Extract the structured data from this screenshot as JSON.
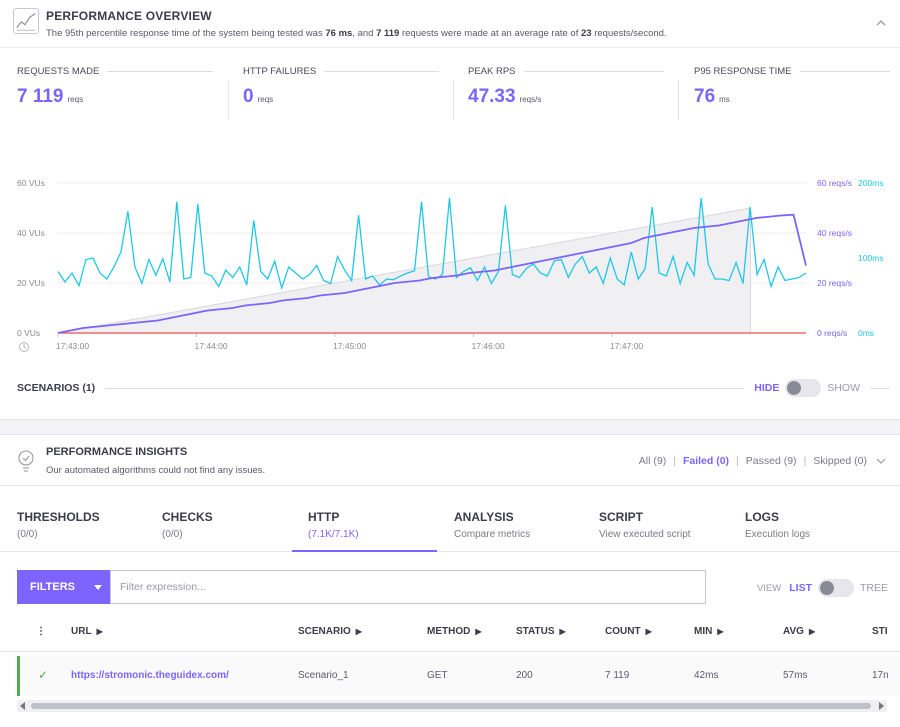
{
  "overview": {
    "title": "PERFORMANCE OVERVIEW",
    "summary": {
      "prefix": "The 95th percentile response time of the system being tested was ",
      "p95": "76 ms",
      "mid1": ", and ",
      "requests": "7 119",
      "mid2": " requests were made at an average rate of ",
      "rate": "23",
      "suffix": " requests/second."
    },
    "icon": "chart-trend-icon",
    "collapse_icon": "chevron-up-icon"
  },
  "metrics": [
    {
      "label": "REQUESTS MADE",
      "value": "7 119",
      "unit": "reqs"
    },
    {
      "label": "HTTP FAILURES",
      "value": "0",
      "unit": "reqs"
    },
    {
      "label": "PEAK RPS",
      "value": "47.33",
      "unit": "reqs/s"
    },
    {
      "label": "P95 RESPONSE TIME",
      "value": "76",
      "unit": "ms"
    }
  ],
  "chart_data": {
    "type": "line",
    "x_ticks": [
      "17:43:00",
      "17:44:00",
      "17:45:00",
      "17:46:00",
      "17:47:00"
    ],
    "y_left_ticks": [
      "0 VUs",
      "20 VUs",
      "40 VUs",
      "60 VUs"
    ],
    "y_left_range": [
      0,
      60
    ],
    "y_rps_ticks": [
      "0 reqs/s",
      "20 reqs/s",
      "40 reqs/s",
      "60 reqs/s"
    ],
    "y_rps_range": [
      0,
      60
    ],
    "y_ms_ticks": [
      "0ms",
      "100ms",
      "200ms"
    ],
    "y_ms_range": [
      0,
      200
    ],
    "grid": true,
    "colors": {
      "vus": "#cfcfd6",
      "rps": "#7d64ff",
      "response_time": "#1fc8e6",
      "failures": "#e5534b"
    },
    "series": [
      {
        "key": "vus",
        "values": [
          0,
          1,
          2,
          3,
          4,
          5,
          6,
          7,
          8,
          9,
          10,
          11,
          12,
          13,
          14,
          15,
          16,
          17,
          18,
          19,
          20,
          21,
          22,
          23,
          24,
          25,
          26,
          27,
          28,
          29,
          30,
          31,
          32,
          33,
          34,
          35,
          36,
          37,
          38,
          39,
          40,
          41,
          42,
          43,
          44,
          45,
          46,
          47,
          48,
          49,
          50
        ],
        "x_minutes": [
          0,
          0.1,
          0.2,
          0.3,
          0.4,
          0.5,
          0.6,
          0.7,
          0.8,
          0.9,
          1.0,
          1.1,
          1.2,
          1.3,
          1.4,
          1.5,
          1.6,
          1.7,
          1.8,
          1.9,
          2.0,
          2.1,
          2.2,
          2.3,
          2.4,
          2.5,
          2.6,
          2.7,
          2.8,
          2.9,
          3.0,
          3.1,
          3.2,
          3.3,
          3.4,
          3.5,
          3.6,
          3.7,
          3.8,
          3.9,
          4.0,
          4.1,
          4.2,
          4.3,
          4.4,
          4.5,
          4.6,
          4.7,
          4.8,
          4.9,
          5.0
        ]
      },
      {
        "key": "rps",
        "values": [
          0,
          1,
          2,
          2.5,
          3,
          3.5,
          4,
          4.5,
          5,
          6,
          7,
          8,
          9,
          9.5,
          10,
          11,
          11.5,
          12,
          13,
          13.5,
          14,
          15,
          15.5,
          16,
          17,
          18,
          19,
          20,
          20.5,
          21,
          22,
          22.5,
          23,
          24,
          24.5,
          25,
          26,
          27,
          28,
          29,
          30,
          31,
          32,
          33,
          34,
          35,
          36,
          38,
          39,
          40,
          41,
          42,
          42.5,
          43,
          44,
          45,
          46,
          46.5,
          47,
          47.3,
          27
        ],
        "x_minutes": [
          0,
          0.1,
          0.2,
          0.3,
          0.4,
          0.5,
          0.6,
          0.7,
          0.8,
          0.9,
          1.0,
          1.1,
          1.2,
          1.3,
          1.4,
          1.5,
          1.6,
          1.7,
          1.8,
          1.9,
          2.0,
          2.1,
          2.2,
          2.3,
          2.4,
          2.5,
          2.6,
          2.7,
          2.8,
          2.9,
          3.0,
          3.1,
          3.2,
          3.3,
          3.4,
          3.5,
          3.6,
          3.7,
          3.8,
          3.9,
          4.0,
          4.1,
          4.2,
          4.3,
          4.4,
          4.5,
          4.6,
          4.7,
          4.8,
          4.9,
          5.0,
          5.1,
          5.2,
          5.3,
          5.4,
          5.5,
          5.6,
          5.7,
          5.8,
          5.9,
          6.0
        ]
      },
      {
        "key": "response_time",
        "values": [
          82,
          68,
          80,
          63,
          98,
          100,
          80,
          72,
          88,
          108,
          162,
          88,
          66,
          98,
          77,
          99,
          68,
          175,
          72,
          74,
          172,
          80,
          76,
          62,
          84,
          74,
          88,
          64,
          150,
          82,
          72,
          96,
          60,
          88,
          80,
          72,
          78,
          90,
          70,
          66,
          102,
          84,
          70,
          157,
          72,
          76,
          64,
          72,
          71,
          76,
          80,
          83,
          175,
          75,
          72,
          78,
          180,
          74,
          82,
          87,
          70,
          88,
          66,
          82,
          170,
          78,
          74,
          86,
          92,
          80,
          76,
          96,
          98,
          74,
          92,
          102,
          80,
          88,
          66,
          100,
          72,
          64,
          108,
          72,
          86,
          168,
          80,
          76,
          102,
          66,
          94,
          77,
          180,
          92,
          72,
          72,
          70,
          94,
          66,
          168,
          78,
          98,
          62,
          88,
          70,
          72,
          74,
          80
        ],
        "x_minutes": [
          0.0,
          0.05,
          0.1,
          0.15,
          0.2,
          0.25,
          0.3,
          0.35,
          0.4,
          0.45,
          0.5,
          0.55,
          0.6,
          0.65,
          0.7,
          0.75,
          0.8,
          0.85,
          0.9,
          0.95,
          1.0,
          1.05,
          1.1,
          1.15,
          1.2,
          1.25,
          1.3,
          1.35,
          1.4,
          1.45,
          1.5,
          1.55,
          1.6,
          1.65,
          1.7,
          1.75,
          1.8,
          1.85,
          1.9,
          1.95,
          2.0,
          2.05,
          2.1,
          2.15,
          2.2,
          2.25,
          2.3,
          2.35,
          2.4,
          2.45,
          2.5,
          2.55,
          2.6,
          2.65,
          2.7,
          2.75,
          2.8,
          2.85,
          2.9,
          2.95,
          3.0,
          3.05,
          3.1,
          3.15,
          3.2,
          3.25,
          3.3,
          3.35,
          3.4,
          3.45,
          3.5,
          3.55,
          3.6,
          3.65,
          3.7,
          3.75,
          3.8,
          3.85,
          3.9,
          3.95,
          4.0,
          4.05,
          4.1,
          4.15,
          4.2,
          4.25,
          4.3,
          4.35,
          4.4,
          4.45,
          4.5,
          4.55,
          4.6,
          4.65,
          4.7,
          4.75,
          4.8,
          4.85,
          4.9,
          4.95,
          5.0,
          5.05,
          5.1,
          5.15,
          5.2,
          5.25,
          5.3,
          5.35
        ]
      },
      {
        "key": "failures",
        "values": [
          0,
          0
        ],
        "x_minutes": [
          0,
          5.0
        ]
      }
    ],
    "clock_icon": "clock-icon"
  },
  "scenarios": {
    "label": "SCENARIOS (1)",
    "hide": "HIDE",
    "show": "SHOW"
  },
  "insights": {
    "title": "PERFORMANCE INSIGHTS",
    "subtitle": "Our automated algorithms could not find any issues.",
    "icon": "lightbulb-icon",
    "filters": [
      {
        "label": "All (9)",
        "active": false
      },
      {
        "label": "Failed (0)",
        "active": true
      },
      {
        "label": "Passed (9)",
        "active": false
      },
      {
        "label": "Skipped (0)",
        "active": false
      }
    ]
  },
  "tabs": [
    {
      "title": "THRESHOLDS",
      "sub": "(0/0)"
    },
    {
      "title": "CHECKS",
      "sub": "(0/0)"
    },
    {
      "title": "HTTP",
      "sub": "(7.1K/7.1K)"
    },
    {
      "title": "ANALYSIS",
      "sub": "Compare metrics"
    },
    {
      "title": "SCRIPT",
      "sub": "View executed script"
    },
    {
      "title": "LOGS",
      "sub": "Execution logs"
    }
  ],
  "filterbar": {
    "button": "FILTERS",
    "placeholder": "Filter expression...",
    "view_label": "VIEW",
    "list": "LIST",
    "tree": "TREE"
  },
  "table": {
    "menu_glyph": "⋮",
    "columns": [
      "URL",
      "SCENARIO",
      "METHOD",
      "STATUS",
      "COUNT",
      "MIN",
      "AVG",
      "STI"
    ],
    "rows": [
      {
        "status_glyph": "✓",
        "url": "https://stromonic.theguidex.com/",
        "scenario": "Scenario_1",
        "method": "GET",
        "status": "200",
        "count": "7 119",
        "min": "42ms",
        "avg": "57ms",
        "std": "17n"
      }
    ]
  }
}
